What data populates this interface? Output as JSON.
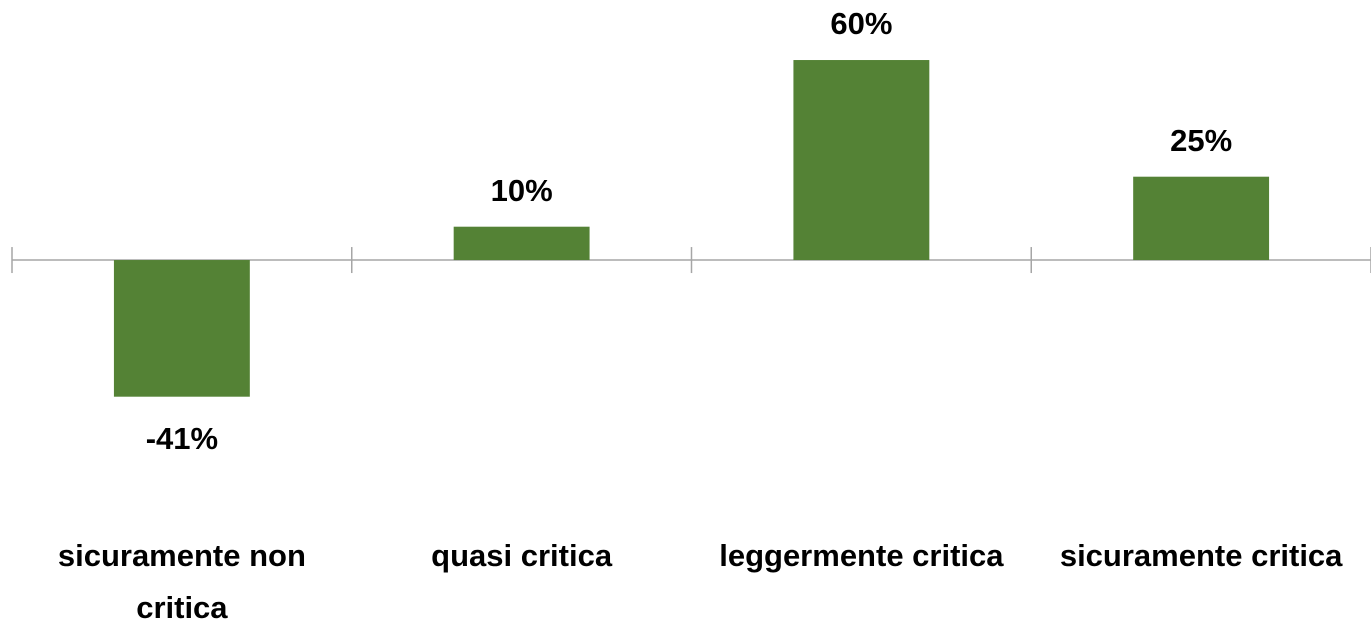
{
  "chart_data": {
    "type": "bar",
    "categories": [
      "sicuramente non critica",
      "quasi critica",
      "leggermente critica",
      "sicuramente critica"
    ],
    "values": [
      -41,
      10,
      60,
      25
    ],
    "value_labels": [
      "-41%",
      "10%",
      "60%",
      "25%"
    ],
    "color": "#548235",
    "ylim": [
      -80,
      70
    ]
  }
}
